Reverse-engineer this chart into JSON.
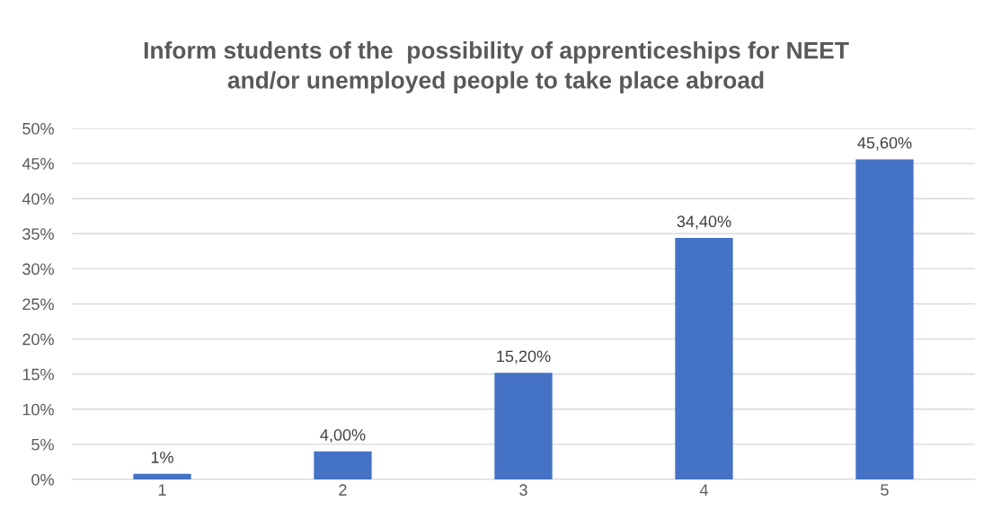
{
  "chart_data": {
    "type": "bar",
    "title": "Inform students of the  possibility of apprenticeships for NEET\nand/or unemployed people to take place abroad",
    "categories": [
      "1",
      "2",
      "3",
      "4",
      "5"
    ],
    "values": [
      0.8,
      4.0,
      15.2,
      34.4,
      45.6
    ],
    "value_labels": [
      "1%",
      "4,00%",
      "15,20%",
      "34,40%",
      "45,60%"
    ],
    "color": "#4472c4",
    "ylim": [
      0,
      50
    ],
    "yticks": [
      {
        "value": 0,
        "label": "0%"
      },
      {
        "value": 5,
        "label": "5%"
      },
      {
        "value": 10,
        "label": "10%"
      },
      {
        "value": 15,
        "label": "15%"
      },
      {
        "value": 20,
        "label": "20%"
      },
      {
        "value": 25,
        "label": "25%"
      },
      {
        "value": 30,
        "label": "30%"
      },
      {
        "value": 35,
        "label": "35%"
      },
      {
        "value": 40,
        "label": "40%"
      },
      {
        "value": 45,
        "label": "45%"
      },
      {
        "value": 50,
        "label": "50%"
      }
    ],
    "grid": "y"
  }
}
